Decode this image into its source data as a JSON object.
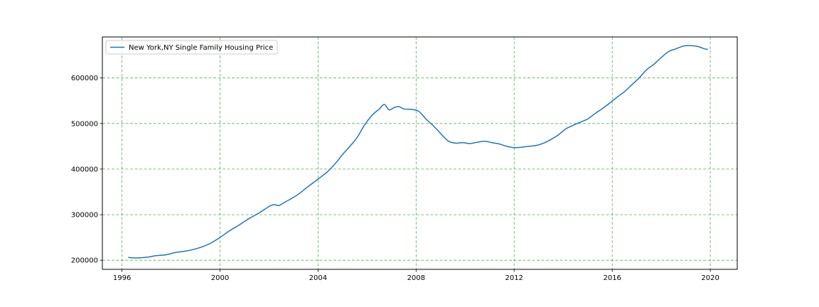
{
  "chart_data": {
    "type": "line",
    "title": "",
    "xlabel": "",
    "ylabel": "",
    "xlim": [
      1995.2,
      2021.1
    ],
    "ylim": [
      180000,
      690000
    ],
    "xticks": [
      1996,
      2000,
      2004,
      2008,
      2012,
      2016,
      2020
    ],
    "yticks": [
      200000,
      300000,
      400000,
      500000,
      600000
    ],
    "grid": true,
    "grid_color": "#2ca02c",
    "legend_position": "upper left",
    "series": [
      {
        "name": "New York,NY Single Family Housing Price",
        "color": "#1f77b4",
        "x": [
          1996.25,
          1996.6,
          1997.0,
          1997.4,
          1997.8,
          1998.2,
          1998.7,
          1999.2,
          1999.6,
          2000.0,
          2000.4,
          2000.8,
          2001.2,
          2001.6,
          2002.0,
          2002.2,
          2002.4,
          2002.6,
          2002.9,
          2003.2,
          2003.6,
          2004.0,
          2004.4,
          2004.7,
          2005.0,
          2005.3,
          2005.6,
          2005.9,
          2006.2,
          2006.5,
          2006.7,
          2006.9,
          2007.1,
          2007.3,
          2007.5,
          2007.8,
          2008.1,
          2008.4,
          2008.7,
          2009.0,
          2009.3,
          2009.6,
          2009.9,
          2010.2,
          2010.5,
          2010.8,
          2011.1,
          2011.4,
          2011.7,
          2012.0,
          2012.3,
          2012.6,
          2012.9,
          2013.2,
          2013.5,
          2013.8,
          2014.1,
          2014.4,
          2014.7,
          2015.0,
          2015.3,
          2015.6,
          2015.9,
          2016.2,
          2016.5,
          2016.8,
          2017.1,
          2017.4,
          2017.7,
          2018.0,
          2018.3,
          2018.6,
          2018.9,
          2019.2,
          2019.5,
          2019.75,
          2019.9
        ],
        "y": [
          206000,
          205000,
          206500,
          210000,
          212000,
          217000,
          221000,
          228000,
          237000,
          250000,
          265000,
          278000,
          292000,
          304000,
          318000,
          322000,
          320000,
          326000,
          335000,
          345000,
          362000,
          378000,
          395000,
          412000,
          432000,
          450000,
          470000,
          497000,
          518000,
          532000,
          542000,
          530000,
          535000,
          537000,
          532000,
          531000,
          527000,
          510000,
          495000,
          478000,
          462000,
          457000,
          458000,
          456000,
          459000,
          461000,
          458000,
          455000,
          450000,
          447000,
          448000,
          450000,
          452000,
          457000,
          465000,
          475000,
          488000,
          496000,
          503000,
          510000,
          522000,
          533000,
          545000,
          558000,
          570000,
          585000,
          600000,
          618000,
          630000,
          645000,
          658000,
          664000,
          670000,
          671000,
          669000,
          664000,
          663000
        ]
      }
    ]
  }
}
